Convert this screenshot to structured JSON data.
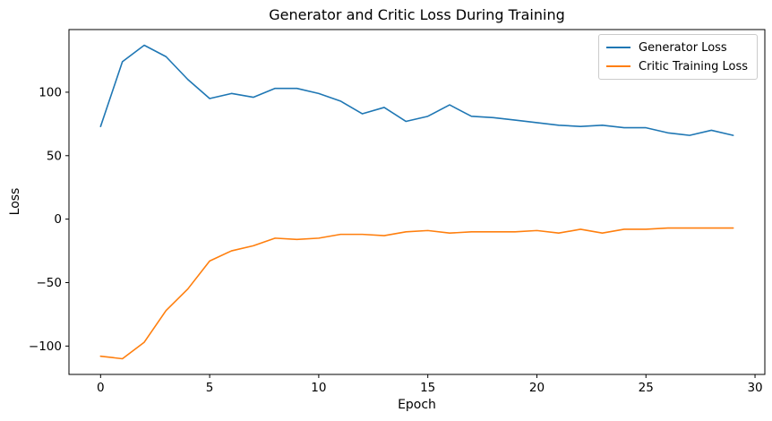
{
  "chart_data": {
    "type": "line",
    "title": "Generator and Critic Loss During Training",
    "xlabel": "Epoch",
    "ylabel": "Loss",
    "x": [
      0,
      1,
      2,
      3,
      4,
      5,
      6,
      7,
      8,
      9,
      10,
      11,
      12,
      13,
      14,
      15,
      16,
      17,
      18,
      19,
      20,
      21,
      22,
      23,
      24,
      25,
      26,
      27,
      28,
      29
    ],
    "series": [
      {
        "name": "Generator Loss",
        "color": "#1f77b4",
        "values": [
          73,
          124,
          137,
          128,
          110,
          95,
          99,
          96,
          103,
          103,
          99,
          93,
          83,
          88,
          77,
          81,
          90,
          81,
          80,
          78,
          76,
          74,
          73,
          74,
          72,
          72,
          68,
          66,
          70,
          66
        ]
      },
      {
        "name": "Critic Training Loss",
        "color": "#ff7f0e",
        "values": [
          -108,
          -110,
          -97,
          -72,
          -55,
          -33,
          -25,
          -21,
          -15,
          -16,
          -15,
          -12,
          -12,
          -13,
          -10,
          -9,
          -11,
          -10,
          -10,
          -10,
          -9,
          -11,
          -8,
          -11,
          -8,
          -8,
          -7,
          -7,
          -7,
          -7
        ]
      }
    ],
    "xticks": [
      0,
      5,
      10,
      15,
      20,
      25,
      30
    ],
    "yticks": [
      100,
      50,
      0,
      -50,
      -100
    ],
    "xlim": [
      -1.45,
      30.45
    ],
    "ylim": [
      -122.35,
      149.35
    ],
    "grid": false,
    "legend_position": "upper right",
    "background": "#ffffff",
    "axes_color": "#000000"
  }
}
